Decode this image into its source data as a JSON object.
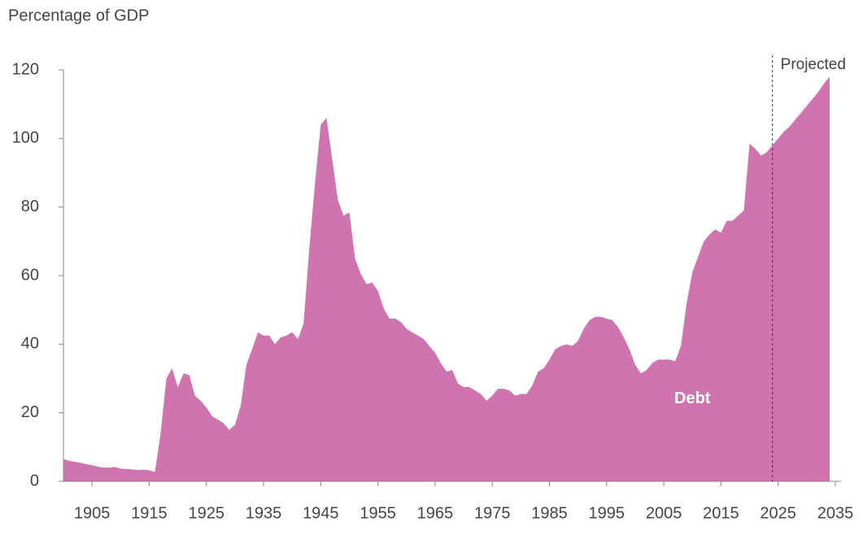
{
  "chart_data": {
    "type": "area",
    "y_axis_label": "Percentage of GDP",
    "annotations": [
      {
        "text": "Projected",
        "x": 2024
      }
    ],
    "x": [
      1900,
      1901,
      1902,
      1903,
      1904,
      1905,
      1906,
      1907,
      1908,
      1909,
      1910,
      1911,
      1912,
      1913,
      1914,
      1915,
      1916,
      1917,
      1918,
      1919,
      1920,
      1921,
      1922,
      1923,
      1924,
      1925,
      1926,
      1927,
      1928,
      1929,
      1930,
      1931,
      1932,
      1933,
      1934,
      1935,
      1936,
      1937,
      1938,
      1939,
      1940,
      1941,
      1942,
      1943,
      1944,
      1945,
      1946,
      1947,
      1948,
      1949,
      1950,
      1951,
      1952,
      1953,
      1954,
      1955,
      1956,
      1957,
      1958,
      1959,
      1960,
      1961,
      1962,
      1963,
      1964,
      1965,
      1966,
      1967,
      1968,
      1969,
      1970,
      1971,
      1972,
      1973,
      1974,
      1975,
      1976,
      1977,
      1978,
      1979,
      1980,
      1981,
      1982,
      1983,
      1984,
      1985,
      1986,
      1987,
      1988,
      1989,
      1990,
      1991,
      1992,
      1993,
      1994,
      1995,
      1996,
      1997,
      1998,
      1999,
      2000,
      2001,
      2002,
      2003,
      2004,
      2005,
      2006,
      2007,
      2008,
      2009,
      2010,
      2011,
      2012,
      2013,
      2014,
      2015,
      2016,
      2017,
      2018,
      2019,
      2020,
      2021,
      2022,
      2023,
      2024,
      2025,
      2026,
      2027,
      2028,
      2029,
      2030,
      2031,
      2032,
      2033,
      2034
    ],
    "series": [
      {
        "name": "Debt",
        "color": "#cf74ae",
        "values": [
          6.5,
          6,
          5.7,
          5.4,
          5,
          4.7,
          4.3,
          4,
          4,
          4.2,
          3.7,
          3.6,
          3.5,
          3.3,
          3.4,
          3.2,
          2.8,
          14,
          30,
          33,
          27.5,
          31.5,
          31,
          25,
          23.5,
          21.5,
          19,
          18,
          17,
          15,
          16.5,
          22,
          34,
          38.5,
          43.5,
          42.5,
          42.5,
          40,
          42,
          42.5,
          43.5,
          41.5,
          46,
          68,
          87,
          104,
          106,
          94,
          82,
          77.5,
          78.5,
          65,
          60.5,
          57.5,
          58,
          55.5,
          50.5,
          47.5,
          47.5,
          46.5,
          44.5,
          43.5,
          42.5,
          41.5,
          39.5,
          37.5,
          34.5,
          32,
          32.5,
          28.5,
          27.5,
          27.5,
          26.5,
          25.5,
          23.5,
          25,
          27,
          27,
          26.5,
          25,
          25.5,
          25.5,
          28,
          32,
          33,
          35.5,
          38.5,
          39.5,
          40,
          39.5,
          41,
          44.5,
          47,
          48,
          48,
          47.5,
          47,
          45,
          42,
          38.5,
          34,
          31.5,
          32.5,
          34.5,
          35.5,
          35.5,
          35.5,
          35,
          39.5,
          52,
          61,
          65.5,
          70,
          72,
          73.5,
          72.5,
          76,
          76,
          77.5,
          79,
          98.5,
          97,
          95,
          96,
          98,
          100,
          102,
          103.5,
          105.5,
          107.5,
          109.5,
          111.5,
          113.5,
          116,
          118
        ]
      }
    ],
    "xlim": [
      1900,
      2036
    ],
    "xticks": [
      1905,
      1915,
      1925,
      1935,
      1945,
      1955,
      1965,
      1975,
      1985,
      1995,
      2005,
      2015,
      2025,
      2035
    ],
    "ylim": [
      0,
      120
    ],
    "yticks": [
      0,
      20,
      40,
      60,
      80,
      100,
      120
    ]
  }
}
